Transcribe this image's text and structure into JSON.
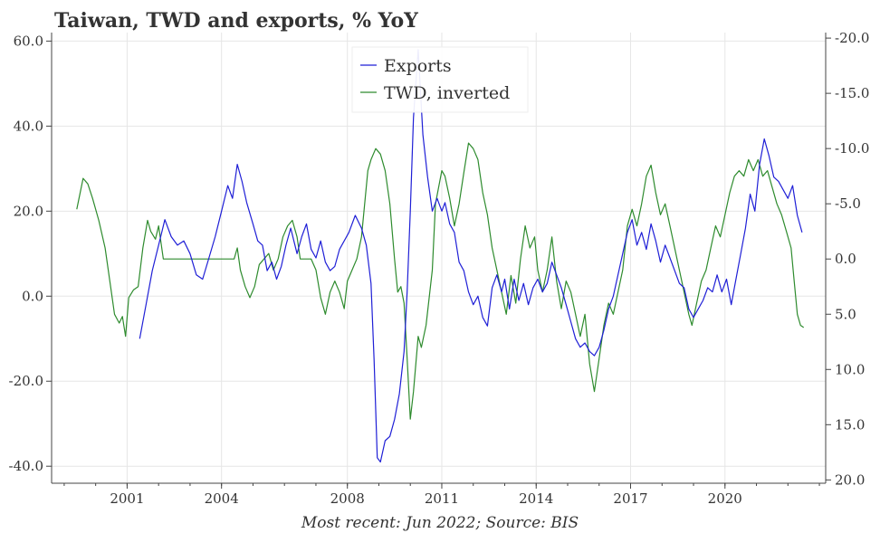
{
  "chart_data": {
    "type": "line",
    "title": "Taiwan, TWD and exports, % YoY",
    "caption": "Most recent: Jun 2022; Source: BIS",
    "x_tick_labels": [
      "2001",
      "2004",
      "2008",
      "2011",
      "2014",
      "2017",
      "2020"
    ],
    "x_tick_years": [
      2001,
      2004,
      2008,
      2011,
      2014,
      2017,
      2020
    ],
    "xlim": [
      1998.6,
      2023.2
    ],
    "y_left": {
      "ylim": [
        -44,
        62
      ],
      "ticks": [
        60,
        40,
        20,
        0,
        -20,
        -40
      ],
      "tick_labels": [
        "60.0",
        "40.0",
        "20.0",
        "0.0",
        "-20.0",
        "-40.0"
      ]
    },
    "y_right": {
      "ylim": [
        -20.5,
        20.3
      ],
      "inverted": true,
      "ticks": [
        -20,
        -15,
        -10,
        -5,
        0,
        5,
        10,
        15,
        20
      ],
      "tick_labels": [
        "-20.0",
        "-15.0",
        "-10.0",
        "-5.0",
        "0.0",
        "5.0",
        "10.0",
        "15.0",
        "20.0"
      ]
    },
    "colors": {
      "exports": "#1f1fd6",
      "twd": "#2e8b2e",
      "grid": "#e6e6e6",
      "axis": "#444444"
    },
    "series": [
      {
        "name": "Exports",
        "axis": "left",
        "points": [
          [
            2001.4,
            -10
          ],
          [
            2001.6,
            -2
          ],
          [
            2001.8,
            6
          ],
          [
            2002.0,
            12
          ],
          [
            2002.2,
            18
          ],
          [
            2002.4,
            14
          ],
          [
            2002.6,
            12
          ],
          [
            2002.8,
            13
          ],
          [
            2003.0,
            10
          ],
          [
            2003.2,
            5
          ],
          [
            2003.4,
            4
          ],
          [
            2003.6,
            9
          ],
          [
            2003.8,
            14
          ],
          [
            2004.0,
            20
          ],
          [
            2004.2,
            26
          ],
          [
            2004.35,
            23
          ],
          [
            2004.5,
            31
          ],
          [
            2004.65,
            27
          ],
          [
            2004.8,
            22
          ],
          [
            2005.0,
            17
          ],
          [
            2005.15,
            13
          ],
          [
            2005.3,
            12
          ],
          [
            2005.45,
            6
          ],
          [
            2005.6,
            8
          ],
          [
            2005.75,
            4
          ],
          [
            2005.9,
            7
          ],
          [
            2006.05,
            12
          ],
          [
            2006.2,
            16
          ],
          [
            2006.4,
            10
          ],
          [
            2006.55,
            14
          ],
          [
            2006.7,
            17
          ],
          [
            2006.85,
            11
          ],
          [
            2007.0,
            9
          ],
          [
            2007.15,
            13
          ],
          [
            2007.3,
            8
          ],
          [
            2007.45,
            6
          ],
          [
            2007.6,
            7
          ],
          [
            2007.75,
            11
          ],
          [
            2007.9,
            13
          ],
          [
            2008.05,
            15
          ],
          [
            2008.25,
            19
          ],
          [
            2008.45,
            16
          ],
          [
            2008.6,
            12
          ],
          [
            2008.75,
            3
          ],
          [
            2008.85,
            -15
          ],
          [
            2008.95,
            -38
          ],
          [
            2009.05,
            -39
          ],
          [
            2009.2,
            -34
          ],
          [
            2009.35,
            -33
          ],
          [
            2009.5,
            -29
          ],
          [
            2009.65,
            -23
          ],
          [
            2009.8,
            -13
          ],
          [
            2009.9,
            1
          ],
          [
            2010.0,
            20
          ],
          [
            2010.1,
            42
          ],
          [
            2010.25,
            58
          ],
          [
            2010.4,
            38
          ],
          [
            2010.55,
            28
          ],
          [
            2010.7,
            20
          ],
          [
            2010.85,
            23
          ],
          [
            2011.0,
            20
          ],
          [
            2011.1,
            22
          ],
          [
            2011.25,
            17
          ],
          [
            2011.4,
            15
          ],
          [
            2011.55,
            8
          ],
          [
            2011.7,
            6
          ],
          [
            2011.85,
            1
          ],
          [
            2012.0,
            -2
          ],
          [
            2012.15,
            0
          ],
          [
            2012.3,
            -5
          ],
          [
            2012.45,
            -7
          ],
          [
            2012.6,
            2
          ],
          [
            2012.75,
            5
          ],
          [
            2012.9,
            1
          ],
          [
            2013.0,
            4
          ],
          [
            2013.15,
            -3
          ],
          [
            2013.3,
            4
          ],
          [
            2013.45,
            -1
          ],
          [
            2013.6,
            3
          ],
          [
            2013.75,
            -2
          ],
          [
            2013.9,
            2
          ],
          [
            2014.05,
            4
          ],
          [
            2014.2,
            1
          ],
          [
            2014.35,
            3
          ],
          [
            2014.5,
            8
          ],
          [
            2014.65,
            5
          ],
          [
            2014.8,
            2
          ],
          [
            2014.95,
            -2
          ],
          [
            2015.1,
            -6
          ],
          [
            2015.25,
            -10
          ],
          [
            2015.4,
            -12
          ],
          [
            2015.55,
            -11
          ],
          [
            2015.7,
            -13
          ],
          [
            2015.85,
            -14
          ],
          [
            2016.0,
            -12
          ],
          [
            2016.15,
            -8
          ],
          [
            2016.3,
            -3
          ],
          [
            2016.45,
            0
          ],
          [
            2016.6,
            5
          ],
          [
            2016.75,
            10
          ],
          [
            2016.9,
            15
          ],
          [
            2017.05,
            18
          ],
          [
            2017.2,
            12
          ],
          [
            2017.35,
            15
          ],
          [
            2017.5,
            11
          ],
          [
            2017.65,
            17
          ],
          [
            2017.8,
            13
          ],
          [
            2017.95,
            8
          ],
          [
            2018.1,
            12
          ],
          [
            2018.25,
            9
          ],
          [
            2018.4,
            6
          ],
          [
            2018.55,
            3
          ],
          [
            2018.7,
            2
          ],
          [
            2018.85,
            -3
          ],
          [
            2019.0,
            -5
          ],
          [
            2019.15,
            -3
          ],
          [
            2019.3,
            -1
          ],
          [
            2019.45,
            2
          ],
          [
            2019.6,
            1
          ],
          [
            2019.75,
            5
          ],
          [
            2019.9,
            1
          ],
          [
            2020.05,
            4
          ],
          [
            2020.2,
            -2
          ],
          [
            2020.35,
            4
          ],
          [
            2020.5,
            10
          ],
          [
            2020.65,
            16
          ],
          [
            2020.8,
            24
          ],
          [
            2020.95,
            20
          ],
          [
            2021.1,
            31
          ],
          [
            2021.25,
            37
          ],
          [
            2021.4,
            33
          ],
          [
            2021.55,
            28
          ],
          [
            2021.7,
            27
          ],
          [
            2021.85,
            25
          ],
          [
            2022.0,
            23
          ],
          [
            2022.15,
            26
          ],
          [
            2022.3,
            19
          ],
          [
            2022.45,
            15
          ]
        ]
      },
      {
        "name": "TWD, inverted",
        "axis": "right",
        "points": [
          [
            1999.4,
            -4.5
          ],
          [
            1999.6,
            -7.3
          ],
          [
            1999.75,
            -6.8
          ],
          [
            1999.9,
            -5.5
          ],
          [
            2000.1,
            -3.5
          ],
          [
            2000.3,
            -1
          ],
          [
            2000.45,
            2
          ],
          [
            2000.6,
            5
          ],
          [
            2000.75,
            5.8
          ],
          [
            2000.85,
            5.2
          ],
          [
            2000.95,
            7
          ],
          [
            2001.05,
            3.5
          ],
          [
            2001.2,
            2.8
          ],
          [
            2001.35,
            2.5
          ],
          [
            2001.5,
            -1
          ],
          [
            2001.65,
            -3.5
          ],
          [
            2001.75,
            -2.5
          ],
          [
            2001.9,
            -1.8
          ],
          [
            2002.0,
            -3
          ],
          [
            2002.15,
            0
          ],
          [
            2002.3,
            0
          ],
          [
            2002.6,
            0
          ],
          [
            2003.0,
            0
          ],
          [
            2003.4,
            0
          ],
          [
            2003.8,
            0
          ],
          [
            2004.2,
            0
          ],
          [
            2004.4,
            0
          ],
          [
            2004.5,
            -1
          ],
          [
            2004.6,
            1
          ],
          [
            2004.75,
            2.5
          ],
          [
            2004.9,
            3.5
          ],
          [
            2005.05,
            2.5
          ],
          [
            2005.2,
            0.5
          ],
          [
            2005.35,
            0
          ],
          [
            2005.5,
            -0.5
          ],
          [
            2005.65,
            1
          ],
          [
            2005.8,
            0
          ],
          [
            2005.95,
            -2
          ],
          [
            2006.1,
            -3
          ],
          [
            2006.25,
            -3.5
          ],
          [
            2006.4,
            -2
          ],
          [
            2006.5,
            0
          ],
          [
            2006.7,
            0
          ],
          [
            2006.85,
            0
          ],
          [
            2007.0,
            1
          ],
          [
            2007.15,
            3.5
          ],
          [
            2007.3,
            5
          ],
          [
            2007.45,
            3
          ],
          [
            2007.6,
            2
          ],
          [
            2007.75,
            3
          ],
          [
            2007.9,
            4.5
          ],
          [
            2008.0,
            2
          ],
          [
            2008.15,
            1
          ],
          [
            2008.3,
            0
          ],
          [
            2008.45,
            -2
          ],
          [
            2008.55,
            -5
          ],
          [
            2008.65,
            -8
          ],
          [
            2008.75,
            -9
          ],
          [
            2008.9,
            -10
          ],
          [
            2009.05,
            -9.5
          ],
          [
            2009.2,
            -8
          ],
          [
            2009.35,
            -5
          ],
          [
            2009.5,
            0
          ],
          [
            2009.6,
            3
          ],
          [
            2009.7,
            2.5
          ],
          [
            2009.8,
            4
          ],
          [
            2009.9,
            9
          ],
          [
            2010.0,
            14.5
          ],
          [
            2010.1,
            12
          ],
          [
            2010.25,
            7
          ],
          [
            2010.35,
            8
          ],
          [
            2010.5,
            6
          ],
          [
            2010.7,
            1
          ],
          [
            2010.8,
            -5
          ],
          [
            2010.9,
            -6.5
          ],
          [
            2011.0,
            -8
          ],
          [
            2011.1,
            -7.5
          ],
          [
            2011.25,
            -5.5
          ],
          [
            2011.4,
            -3
          ],
          [
            2011.55,
            -5
          ],
          [
            2011.7,
            -7.8
          ],
          [
            2011.85,
            -10.5
          ],
          [
            2012.0,
            -10
          ],
          [
            2012.15,
            -9
          ],
          [
            2012.3,
            -6
          ],
          [
            2012.45,
            -4
          ],
          [
            2012.6,
            -1
          ],
          [
            2012.75,
            1
          ],
          [
            2012.9,
            3
          ],
          [
            2013.05,
            5
          ],
          [
            2013.2,
            1.5
          ],
          [
            2013.35,
            4
          ],
          [
            2013.5,
            0
          ],
          [
            2013.65,
            -3
          ],
          [
            2013.8,
            -1
          ],
          [
            2013.95,
            -2
          ],
          [
            2014.05,
            1
          ],
          [
            2014.2,
            3
          ],
          [
            2014.35,
            1
          ],
          [
            2014.5,
            -2
          ],
          [
            2014.65,
            2
          ],
          [
            2014.8,
            4.5
          ],
          [
            2014.95,
            2
          ],
          [
            2015.1,
            3
          ],
          [
            2015.25,
            5
          ],
          [
            2015.4,
            7
          ],
          [
            2015.55,
            5
          ],
          [
            2015.7,
            9.5
          ],
          [
            2015.85,
            12
          ],
          [
            2016.0,
            9
          ],
          [
            2016.15,
            6
          ],
          [
            2016.3,
            4
          ],
          [
            2016.45,
            5
          ],
          [
            2016.6,
            3
          ],
          [
            2016.75,
            1
          ],
          [
            2016.9,
            -3
          ],
          [
            2017.05,
            -4.5
          ],
          [
            2017.2,
            -3
          ],
          [
            2017.35,
            -5
          ],
          [
            2017.5,
            -7.5
          ],
          [
            2017.65,
            -8.5
          ],
          [
            2017.8,
            -6
          ],
          [
            2017.95,
            -4
          ],
          [
            2018.1,
            -5
          ],
          [
            2018.25,
            -3
          ],
          [
            2018.4,
            -1
          ],
          [
            2018.55,
            1
          ],
          [
            2018.7,
            3
          ],
          [
            2018.85,
            5
          ],
          [
            2018.95,
            6
          ],
          [
            2019.1,
            4
          ],
          [
            2019.25,
            2
          ],
          [
            2019.4,
            1
          ],
          [
            2019.55,
            -1
          ],
          [
            2019.7,
            -3
          ],
          [
            2019.85,
            -2
          ],
          [
            2020.0,
            -4
          ],
          [
            2020.15,
            -6
          ],
          [
            2020.3,
            -7.5
          ],
          [
            2020.45,
            -8
          ],
          [
            2020.6,
            -7.5
          ],
          [
            2020.75,
            -9
          ],
          [
            2020.9,
            -8
          ],
          [
            2021.05,
            -9
          ],
          [
            2021.2,
            -7.5
          ],
          [
            2021.35,
            -8
          ],
          [
            2021.5,
            -6.5
          ],
          [
            2021.65,
            -5
          ],
          [
            2021.8,
            -4
          ],
          [
            2021.95,
            -2.5
          ],
          [
            2022.1,
            -1
          ],
          [
            2022.2,
            2
          ],
          [
            2022.3,
            5
          ],
          [
            2022.4,
            6
          ],
          [
            2022.5,
            6.2
          ]
        ]
      }
    ]
  }
}
